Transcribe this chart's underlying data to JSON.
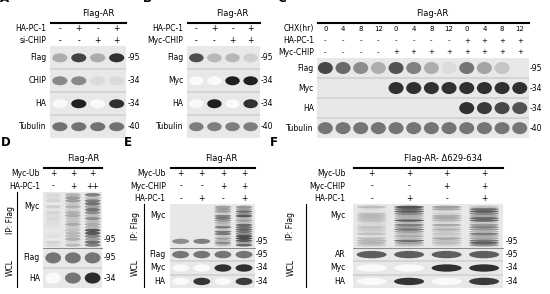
{
  "figure_bg": "#ffffff",
  "panel_bg": "#c8c8c8",
  "gel_bg": "#e8e8e8",
  "fs_tiny": 5.5,
  "fs_small": 6.0,
  "fs_panel": 8.5,
  "panels_pos": {
    "A": [
      0.01,
      0.53,
      0.255,
      0.44
    ],
    "B": [
      0.27,
      0.53,
      0.235,
      0.44
    ],
    "C": [
      0.51,
      0.53,
      0.485,
      0.44
    ],
    "D": [
      0.01,
      0.02,
      0.215,
      0.46
    ],
    "E": [
      0.235,
      0.02,
      0.265,
      0.46
    ],
    "F": [
      0.51,
      0.02,
      0.47,
      0.46
    ]
  }
}
